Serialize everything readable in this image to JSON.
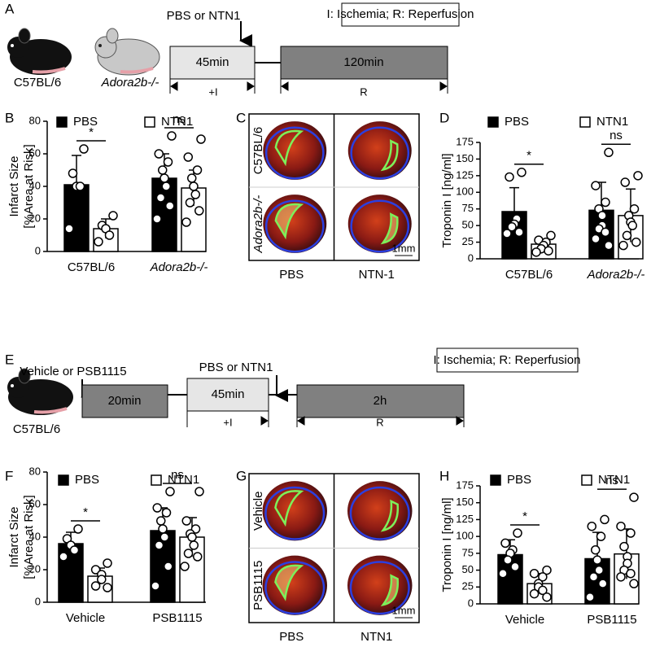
{
  "panel_labels": [
    "A",
    "B",
    "C",
    "D",
    "E",
    "F",
    "G",
    "H"
  ],
  "timeline_a": {
    "mice": [
      "C57BL/6",
      "Adora2b-/-"
    ],
    "treatment": "PBS or NTN1",
    "key": "I: Ischemia; R: Reperfusion",
    "boxes": [
      "45min",
      "120min"
    ],
    "phases": [
      "+I",
      "R"
    ]
  },
  "timeline_e": {
    "mouse": "C57BL/6",
    "pretreatment": "Vehicle or PSB1115",
    "treatment": "PBS or NTN1",
    "key": "I: Ischemia; R: Reperfusion",
    "boxes": [
      "20min",
      "45min",
      "2h"
    ],
    "phases": [
      "+I",
      "R"
    ]
  },
  "images_c": {
    "rows": [
      "C57BL/6",
      "Adora2b-/-"
    ],
    "columns": [
      "PBS",
      "NTN-1"
    ],
    "scale_bar": "1mm"
  },
  "images_g": {
    "rows": [
      "Vehicle",
      "PSB1115"
    ],
    "columns": [
      "PBS",
      "NTN1"
    ],
    "scale_bar": "1mm"
  },
  "chart_data": [
    {
      "type": "bar",
      "ylabel": [
        "Infarct Size",
        "[%Area at Risk]"
      ],
      "categories": [
        "C57BL/6",
        "Adora2b-/-"
      ],
      "series": [
        {
          "name": "PBS",
          "color": "#000000",
          "values": [
            41,
            45
          ],
          "errors": [
            18,
            15
          ],
          "points": [
            [
              63,
              48,
              40,
              40,
              14
            ],
            [
              71,
              60,
              55,
              50,
              45,
              40,
              33,
              28,
              20
            ]
          ]
        },
        {
          "name": "NTN1",
          "color": "#ffffff",
          "values": [
            14,
            39
          ],
          "errors": [
            6,
            11
          ],
          "points": [
            [
              22,
              16,
              14,
              10,
              6
            ],
            [
              69,
              58,
              50,
              45,
              40,
              35,
              30,
              25,
              18
            ]
          ]
        }
      ],
      "significance": [
        "*",
        "ns"
      ],
      "ylim": [
        0,
        80
      ],
      "yticks": [
        0,
        20,
        40,
        60,
        80
      ]
    },
    {
      "type": "bar",
      "ylabel": [
        "Troponin I [ng/ml]"
      ],
      "categories": [
        "C57BL/6",
        "Adora2b-/-"
      ],
      "series": [
        {
          "name": "PBS",
          "color": "#000000",
          "values": [
            71,
            73
          ],
          "errors": [
            36,
            42
          ],
          "points": [
            [
              130,
              123,
              60,
              52,
              48,
              40,
              38
            ],
            [
              160,
              110,
              85,
              75,
              65,
              50,
              45,
              40,
              30,
              20
            ]
          ]
        },
        {
          "name": "NTN1",
          "color": "#ffffff",
          "values": [
            22,
            65
          ],
          "errors": [
            6,
            40
          ],
          "points": [
            [
              35,
              28,
              25,
              20,
              15,
              12,
              10
            ],
            [
              125,
              115,
              75,
              65,
              55,
              50,
              35,
              25,
              20
            ]
          ]
        }
      ],
      "significance": [
        "*",
        "ns"
      ],
      "ylim": [
        0,
        175
      ],
      "yticks": [
        0,
        25,
        50,
        75,
        100,
        125,
        150,
        175
      ]
    },
    {
      "type": "bar",
      "ylabel": [
        "Infarct Size",
        "[%Area at Risk]"
      ],
      "categories": [
        "Vehicle",
        "PSB1115"
      ],
      "series": [
        {
          "name": "PBS",
          "color": "#000000",
          "values": [
            36,
            44
          ],
          "errors": [
            7,
            14
          ],
          "points": [
            [
              45,
              39,
              35,
              32,
              28
            ],
            [
              68,
              58,
              55,
              50,
              45,
              40,
              35,
              22,
              10
            ]
          ]
        },
        {
          "name": "NTN1",
          "color": "#ffffff",
          "values": [
            16,
            40
          ],
          "errors": [
            5,
            12
          ],
          "points": [
            [
              24,
              20,
              17,
              14,
              10,
              9
            ],
            [
              68,
              50,
              45,
              42,
              40,
              35,
              30,
              28,
              22
            ]
          ]
        }
      ],
      "significance": [
        "*",
        "ns"
      ],
      "ylim": [
        0,
        80
      ],
      "yticks": [
        0,
        20,
        40,
        60,
        80
      ]
    },
    {
      "type": "bar",
      "ylabel": [
        "Troponin I [ng/ml]"
      ],
      "categories": [
        "Vehicle",
        "PSB1115"
      ],
      "series": [
        {
          "name": "PBS",
          "color": "#000000",
          "values": [
            73,
            67
          ],
          "errors": [
            22,
            39
          ],
          "points": [
            [
              105,
              90,
              80,
              75,
              65,
              55,
              45
            ],
            [
              125,
              115,
              100,
              80,
              65,
              50,
              40,
              30,
              10
            ]
          ]
        },
        {
          "name": "NTN1",
          "color": "#ffffff",
          "values": [
            30,
            74
          ],
          "errors": [
            15,
            37
          ],
          "points": [
            [
              50,
              45,
              40,
              30,
              25,
              20,
              15,
              10
            ],
            [
              158,
              115,
              105,
              85,
              70,
              60,
              50,
              45,
              40,
              30
            ]
          ]
        }
      ],
      "significance": [
        "*",
        "ns"
      ],
      "ylim": [
        0,
        175
      ],
      "yticks": [
        0,
        25,
        50,
        75,
        100,
        125,
        150,
        175
      ]
    }
  ]
}
